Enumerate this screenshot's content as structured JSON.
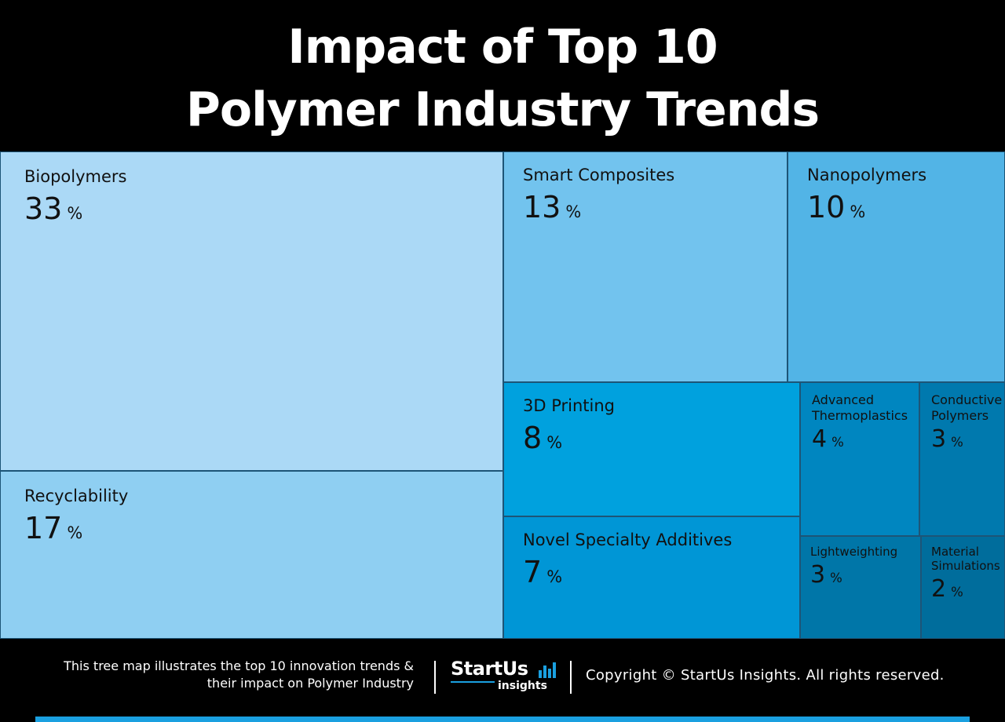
{
  "chart_data": {
    "type": "treemap",
    "title": [
      "Impact of Top 10",
      "Polymer Industry Trends"
    ],
    "unit": "%",
    "items": [
      {
        "name": "Biopolymers",
        "value": 33,
        "color": "#abd9f6"
      },
      {
        "name": "Recyclability",
        "value": 17,
        "color": "#8fcff2"
      },
      {
        "name": "Smart Composites",
        "value": 13,
        "color": "#72c3ee"
      },
      {
        "name": "Nanopolymers",
        "value": 10,
        "color": "#52b4e6"
      },
      {
        "name": "3D Printing",
        "value": 8,
        "color": "#00a1de"
      },
      {
        "name": "Novel Specialty Additives",
        "value": 7,
        "color": "#0096d6"
      },
      {
        "name": "Advanced\nThermoplastics",
        "value": 4,
        "color": "#0086c0"
      },
      {
        "name": "Conductive\nPolymers",
        "value": 3,
        "color": "#0079ae"
      },
      {
        "name": "Lightweighting",
        "value": 3,
        "color": "#0076a8"
      },
      {
        "name": "Material\nSimulations",
        "value": 2,
        "color": "#006d9c"
      }
    ]
  },
  "footer": {
    "description_line1": "This tree map illustrates the top 10 innovation trends &",
    "description_line2": "their impact on Polymer Industry",
    "logo_text": "StartUs",
    "logo_sub": "insights",
    "copyright": "Copyright © StartUs Insights. All rights reserved."
  },
  "colors": {
    "background": "#000000",
    "accent": "#1aa0e0",
    "border": "#1d5577"
  }
}
